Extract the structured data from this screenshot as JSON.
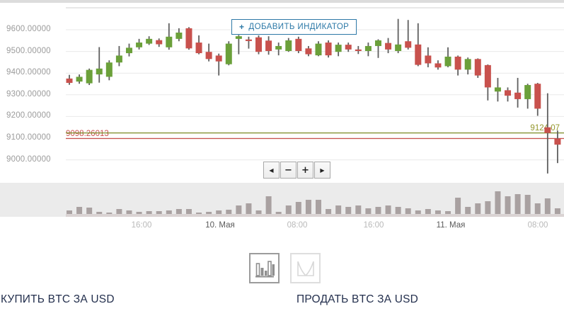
{
  "colors": {
    "candle_up": "#6ba03a",
    "candle_down": "#c8514d",
    "wick": "#5f5f5f",
    "volume_bar": "#a9a1a1",
    "volume_baseline": "#dad3d3",
    "grid": "#e9e9e9",
    "grid_top": "#d0d0d0",
    "sell_line": "#7c8b26",
    "sell_label": "#93962a",
    "buy_line": "#c8514d",
    "buy_label": "#c8514d",
    "accent_blue": "#2d79a7",
    "footer_navy": "#24304e"
  },
  "toolbar": {
    "add_indicator_plus": "+",
    "add_indicator_label": "ДОБАВИТЬ ИНДИКАТОР"
  },
  "nav": {
    "pan_left": "◀",
    "zoom_out": "−",
    "zoom_in": "+",
    "pan_right": "▶"
  },
  "footer": {
    "buy_label": "КУПИТЬ BTC ЗА USD",
    "sell_label": "ПРОДАТЬ BTC ЗА USD"
  },
  "chart_data": {
    "type": "candlestick",
    "subchart": "volume bars",
    "interval": "1h",
    "y_axis_labels": [
      "9600.00000",
      "9500.00000",
      "9400.00000",
      "9300.00000",
      "9200.00000",
      "9100.00000",
      "9000.00000"
    ],
    "y_axis_values": [
      9600,
      9500,
      9400,
      9300,
      9200,
      9100,
      9000
    ],
    "ylim": [
      8930,
      9700
    ],
    "grid": true,
    "x_axis_ticks": [
      {
        "label": "16:00",
        "type": "time",
        "x": 200
      },
      {
        "label": "10. Мая",
        "type": "date",
        "x": 311
      },
      {
        "label": "08:00",
        "type": "time",
        "x": 420
      },
      {
        "label": "16:00",
        "type": "time",
        "x": 528
      },
      {
        "label": "11. Мая",
        "type": "date",
        "x": 637
      },
      {
        "label": "08:00",
        "type": "time",
        "x": 760
      }
    ],
    "price_lines": [
      {
        "label": "9098.26013",
        "value": 9098.26013,
        "side": "left"
      },
      {
        "label": "9124.07",
        "value": 9124.07,
        "side": "right"
      }
    ],
    "candles_fields": [
      "open",
      "high",
      "low",
      "close",
      "volume_rel"
    ],
    "candles": [
      [
        9375,
        9392,
        9346,
        9355,
        5
      ],
      [
        9361,
        9394,
        9351,
        9383,
        10
      ],
      [
        9353,
        9421,
        9345,
        9415,
        9
      ],
      [
        9394,
        9520,
        9356,
        9421,
        3
      ],
      [
        9383,
        9459,
        9367,
        9449,
        2
      ],
      [
        9449,
        9525,
        9432,
        9481,
        7
      ],
      [
        9492,
        9536,
        9477,
        9517,
        5
      ],
      [
        9519,
        9558,
        9509,
        9541,
        3
      ],
      [
        9536,
        9570,
        9530,
        9558,
        4
      ],
      [
        9552,
        9560,
        9521,
        9533,
        4
      ],
      [
        9519,
        9630,
        9508,
        9568,
        5
      ],
      [
        9558,
        9607,
        9547,
        9587,
        7
      ],
      [
        9607,
        9612,
        9508,
        9514,
        7
      ],
      [
        9541,
        9574,
        9487,
        9492,
        2
      ],
      [
        9498,
        9536,
        9454,
        9465,
        3
      ],
      [
        9481,
        9490,
        9389,
        9454,
        5
      ],
      [
        9441,
        9547,
        9436,
        9536,
        6
      ],
      [
        9558,
        9576,
        9487,
        9570,
        12
      ],
      [
        9555,
        9568,
        9513,
        9548,
        15
      ],
      [
        9565,
        9574,
        9487,
        9498,
        5
      ],
      [
        9550,
        9570,
        9485,
        9502,
        25
      ],
      [
        9509,
        9541,
        9482,
        9525,
        3
      ],
      [
        9502,
        9562,
        9498,
        9551,
        12
      ],
      [
        9558,
        9568,
        9492,
        9502,
        17
      ],
      [
        9514,
        9525,
        9478,
        9487,
        20
      ],
      [
        9482,
        9547,
        9478,
        9536,
        20
      ],
      [
        9541,
        9551,
        9472,
        9482,
        7
      ],
      [
        9498,
        9541,
        9478,
        9531,
        12
      ],
      [
        9531,
        9541,
        9498,
        9509,
        10
      ],
      [
        9509,
        9525,
        9488,
        9502,
        12
      ],
      [
        9502,
        9541,
        9478,
        9525,
        8
      ],
      [
        9525,
        9556,
        9470,
        9551,
        10
      ],
      [
        9539,
        9562,
        9492,
        9509,
        12
      ],
      [
        9502,
        9650,
        9492,
        9532,
        10
      ],
      [
        9547,
        9645,
        9509,
        9517,
        8
      ],
      [
        9532,
        9630,
        9432,
        9438,
        5
      ],
      [
        9481,
        9519,
        9427,
        9445,
        7
      ],
      [
        9445,
        9459,
        9416,
        9426,
        5
      ],
      [
        9432,
        9519,
        9427,
        9476,
        4
      ],
      [
        9476,
        9481,
        9389,
        9416,
        23
      ],
      [
        9416,
        9472,
        9394,
        9465,
        10
      ],
      [
        9465,
        9468,
        9378,
        9389,
        15
      ],
      [
        9437,
        9440,
        9274,
        9334,
        18
      ],
      [
        9315,
        9378,
        9269,
        9334,
        32
      ],
      [
        9321,
        9334,
        9269,
        9296,
        25
      ],
      [
        9310,
        9378,
        9241,
        9280,
        28
      ],
      [
        9280,
        9351,
        9236,
        9345,
        27
      ],
      [
        9351,
        9355,
        9203,
        9236,
        15
      ],
      [
        9150,
        9307,
        8937,
        9124,
        22
      ],
      [
        9098,
        9135,
        8985,
        9070,
        8
      ]
    ]
  },
  "chart_type_buttons": [
    {
      "name": "candlestick-chart",
      "selected": true
    },
    {
      "name": "depth-chart",
      "selected": false
    }
  ]
}
